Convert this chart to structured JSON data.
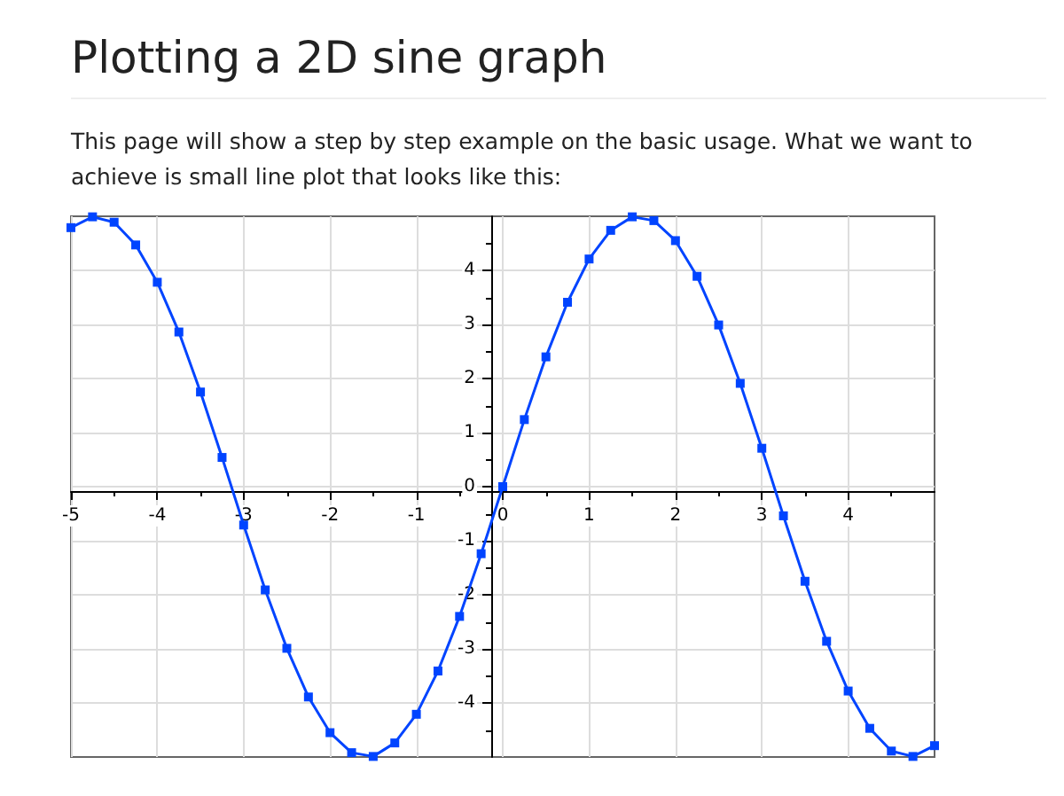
{
  "chart_data": {
    "type": "line",
    "title": "Plotting a 2D sine graph",
    "annotations": [
      "This page will show a step by step example on the basic usage. What we want to achieve is small line plot that looks like this:"
    ],
    "x": [
      -5,
      -4.75,
      -4.5,
      -4.25,
      -4,
      -3.75,
      -3.5,
      -3.25,
      -3,
      -2.75,
      -2.5,
      -2.25,
      -2,
      -1.75,
      -1.5,
      -1.25,
      -1,
      -0.75,
      -0.5,
      -0.25,
      0,
      0.25,
      0.5,
      0.75,
      1,
      1.25,
      1.5,
      1.75,
      2,
      2.25,
      2.5,
      2.75,
      3,
      3.25,
      3.5,
      3.75,
      4,
      4.25,
      4.5,
      4.75,
      5
    ],
    "series": [
      {
        "color": "#0044ff",
        "values": [
          4.79,
          4.99,
          4.89,
          4.47,
          3.78,
          2.86,
          1.75,
          0.54,
          -0.71,
          -1.91,
          -2.99,
          -3.89,
          -4.55,
          -4.92,
          -4.99,
          -4.74,
          -4.21,
          -3.41,
          -2.4,
          -1.24,
          0,
          1.24,
          2.4,
          3.41,
          4.21,
          4.74,
          4.99,
          4.92,
          4.55,
          3.89,
          2.99,
          1.91,
          0.71,
          -0.54,
          -1.75,
          -2.86,
          -3.78,
          -4.47,
          -4.89,
          -4.99,
          -4.79
        ]
      }
    ],
    "xlim": [
      -5,
      5
    ],
    "ylim": [
      -5,
      5
    ],
    "xticks": [
      -5,
      -4,
      -3,
      -2,
      -1,
      0,
      1,
      2,
      3,
      4
    ],
    "yticks": [
      -4,
      -3,
      -2,
      -1,
      0,
      1,
      2,
      3,
      4
    ],
    "grid": true,
    "marker": "square",
    "line_style": "solid"
  }
}
